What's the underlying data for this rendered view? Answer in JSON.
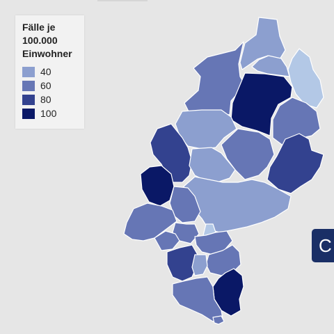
{
  "legend": {
    "title_lines": [
      "Fälle je",
      "100.000",
      "Einwohner"
    ],
    "items": [
      {
        "label": "40",
        "color": "#8c9fcf"
      },
      {
        "label": "60",
        "color": "#6676b5"
      },
      {
        "label": "80",
        "color": "#33428f"
      },
      {
        "label": "100",
        "color": "#0a1866"
      }
    ]
  },
  "side_button": {
    "label": "C",
    "color": "#1a2f66"
  },
  "colors": {
    "lightest": "#b3c8e6",
    "background": "#e6e6e6"
  }
}
